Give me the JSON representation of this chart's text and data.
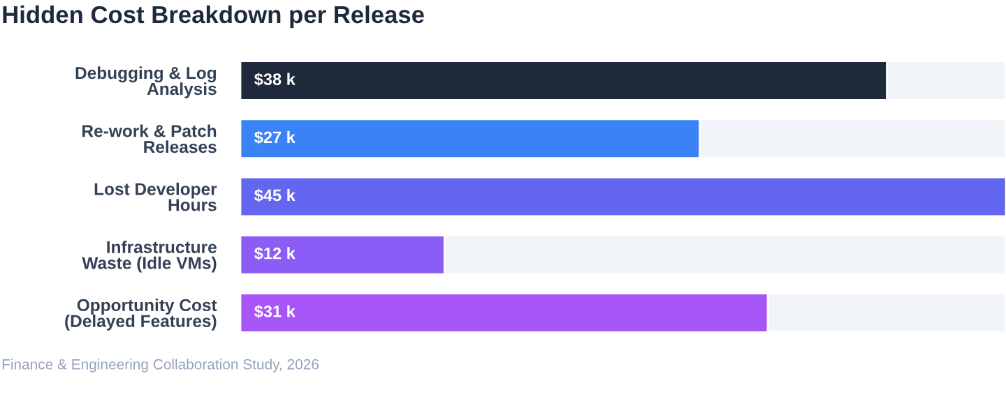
{
  "chart_data": {
    "type": "bar",
    "orientation": "horizontal",
    "title": "Hidden Cost Breakdown per Release",
    "categories": [
      "Debugging & Log Analysis",
      "Re-work & Patch Releases",
      "Lost Developer Hours",
      "Infrastructure Waste (Idle VMs)",
      "Opportunity Cost (Delayed Features)"
    ],
    "values": [
      38,
      27,
      45,
      12,
      31
    ],
    "colors": [
      "#1e293b",
      "#3b82f6",
      "#6366f1",
      "#8b5cf6",
      "#a855f7"
    ],
    "value_labels": [
      "$38 k",
      "$27 k",
      "$45 k",
      "$12 k",
      "$31 k"
    ],
    "xlim": [
      0,
      45
    ],
    "tick_labels": "y",
    "annotations": [
      "Finance & Engineering Collaboration Study, 2026"
    ]
  }
}
